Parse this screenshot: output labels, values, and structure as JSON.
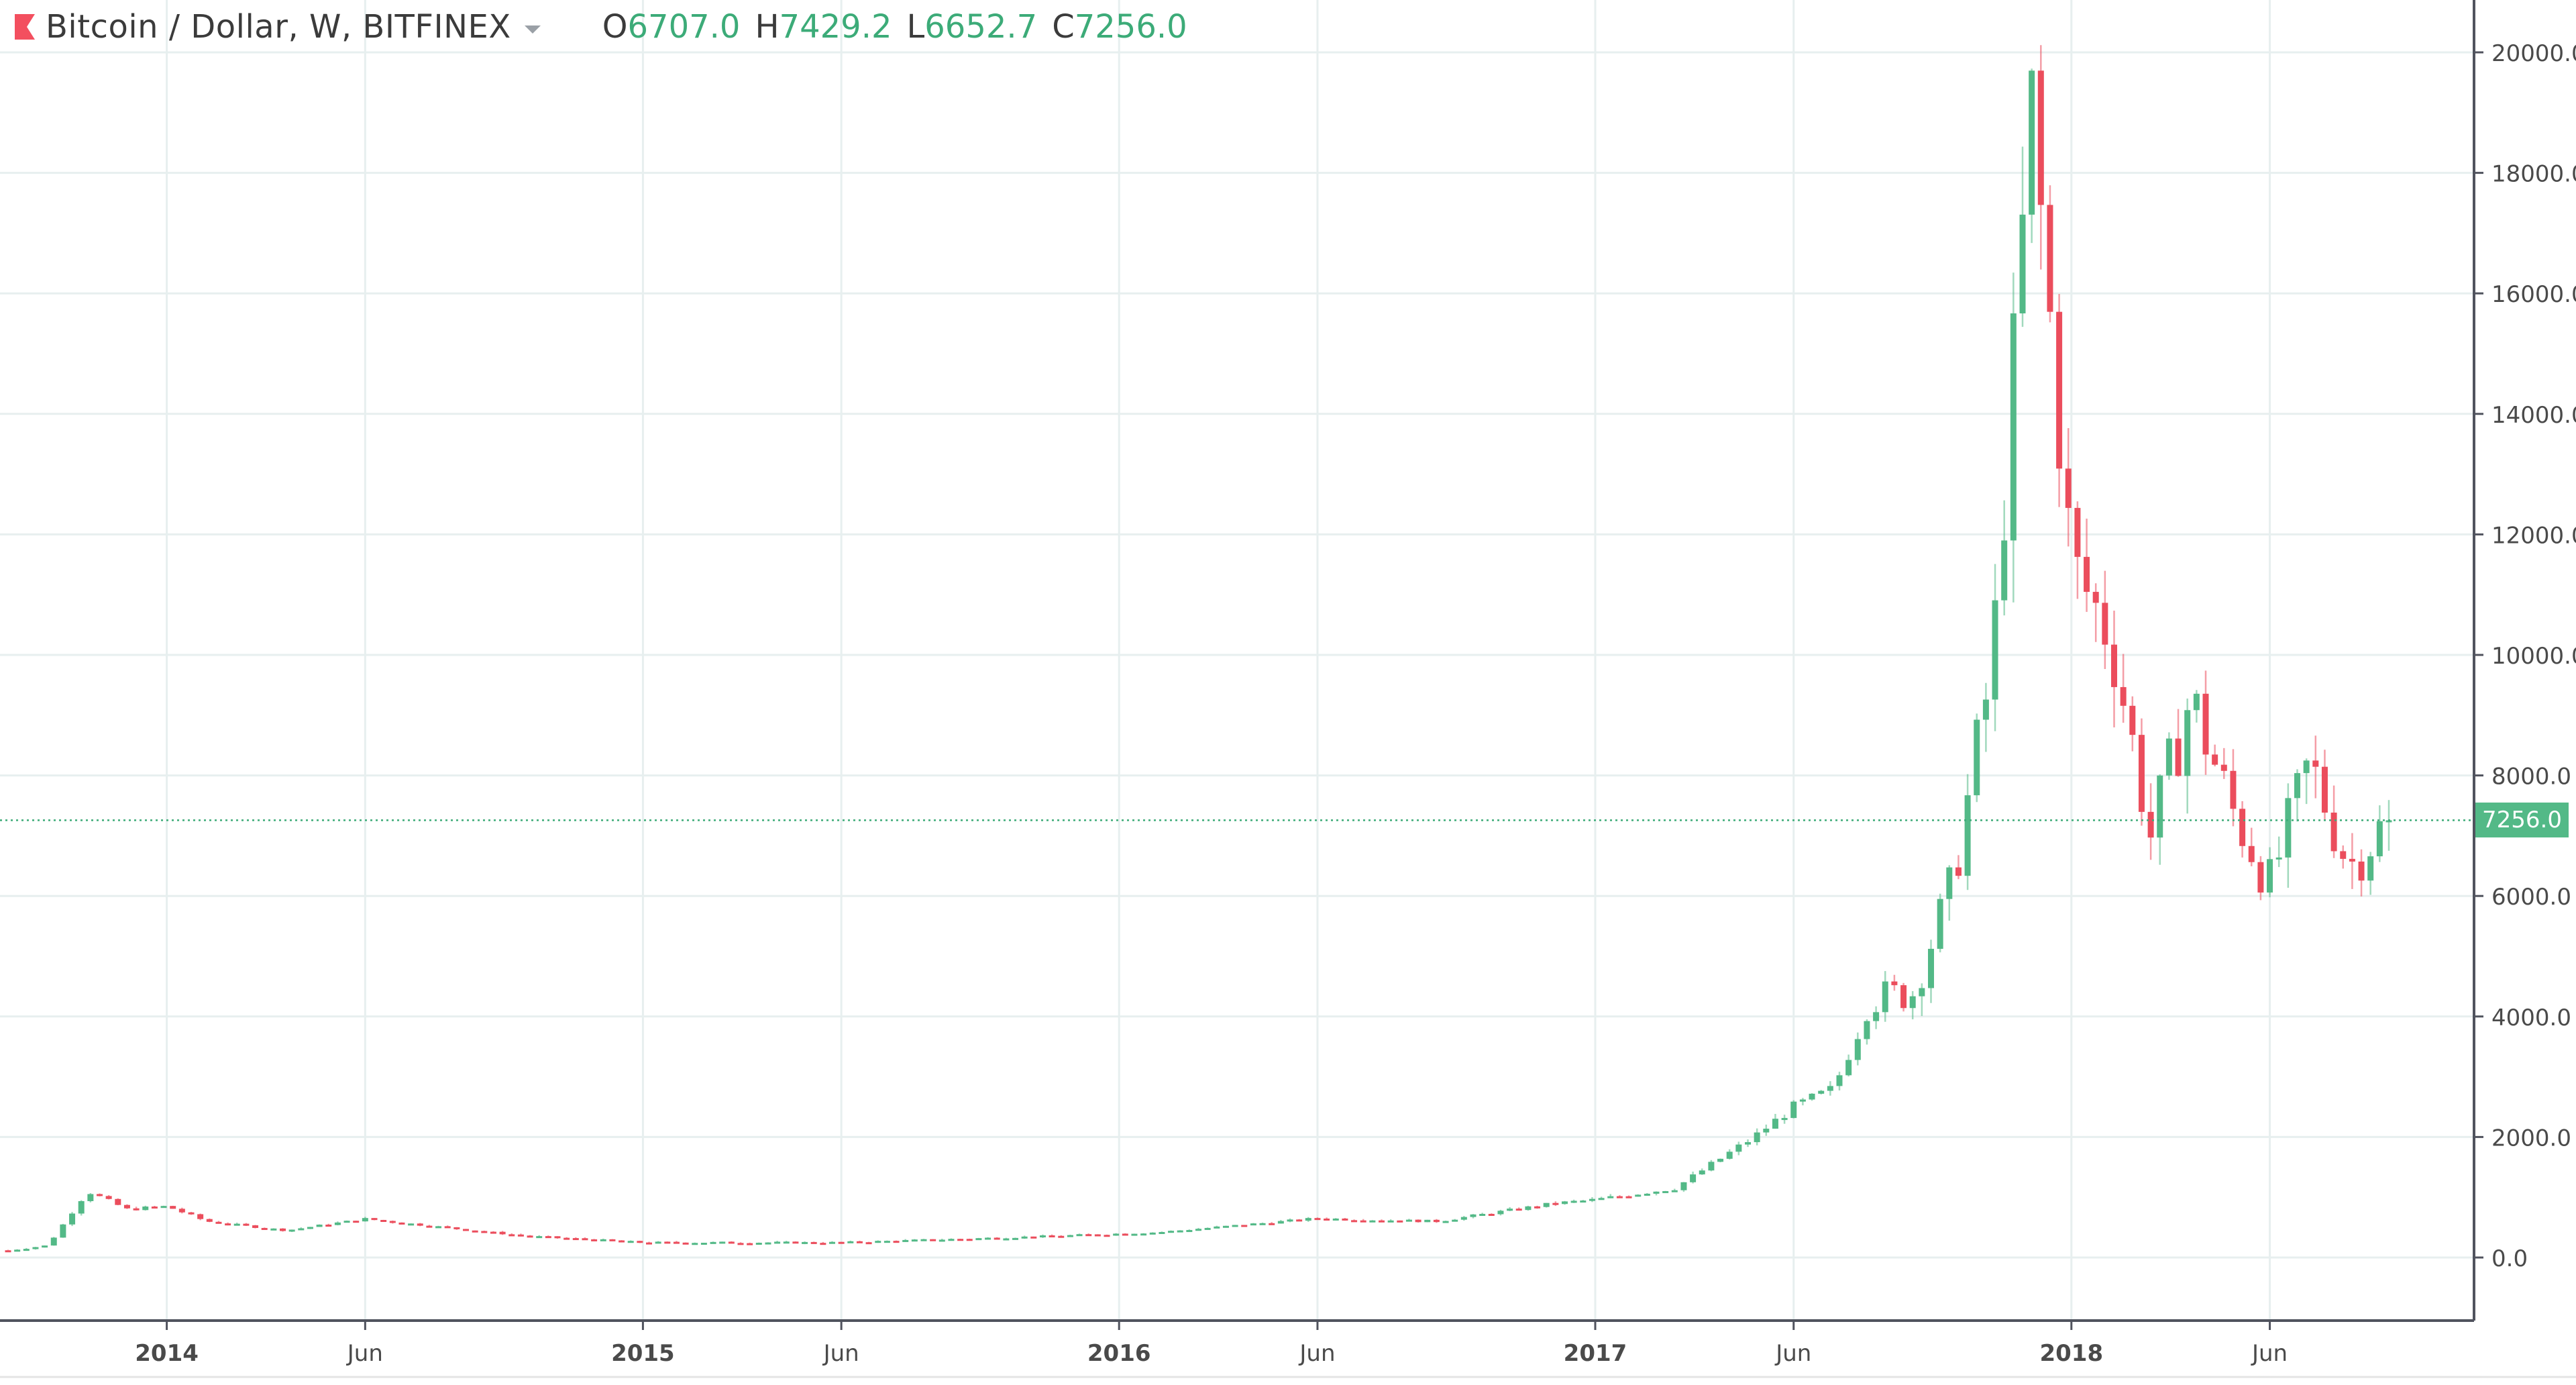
{
  "header": {
    "title": "Bitcoin / Dollar, W, BITFINEX",
    "ohlc": [
      {
        "key": "O",
        "value": "6707.0"
      },
      {
        "key": "H",
        "value": "7429.2"
      },
      {
        "key": "L",
        "value": "6652.7"
      },
      {
        "key": "C",
        "value": "7256.0"
      }
    ]
  },
  "colors": {
    "up": "#53b987",
    "down": "#eb4d5c",
    "grid": "#e7efef",
    "axis": "#50535e",
    "flag": "#f34f5f",
    "price_line": "#3cab78"
  },
  "chart_data": {
    "type": "candlestick",
    "title": "Bitcoin / Dollar, W, BITFINEX",
    "interval": "W",
    "current_price": 7256.0,
    "current_price_label": "7256.0",
    "ylim": [
      -1000,
      21000
    ],
    "y_ticks": [
      "0.0",
      "2000.0",
      "4000.0",
      "6000.0",
      "8000.0",
      "10000.0",
      "12000.0",
      "14000.0",
      "16000.0",
      "18000.0",
      "20000.0"
    ],
    "x_ticks": [
      {
        "label": "2014",
        "bold": true
      },
      {
        "label": "Jun",
        "bold": false
      },
      {
        "label": "2015",
        "bold": true
      },
      {
        "label": "Jun",
        "bold": false
      },
      {
        "label": "2016",
        "bold": true
      },
      {
        "label": "Jun",
        "bold": false
      },
      {
        "label": "2017",
        "bold": true
      },
      {
        "label": "Jun",
        "bold": false
      },
      {
        "label": "2018",
        "bold": true
      },
      {
        "label": "Jun",
        "bold": false
      }
    ],
    "grid": true,
    "series_keypoints": [
      {
        "date": "2013-09",
        "close": 120
      },
      {
        "date": "2013-10",
        "close": 200
      },
      {
        "date": "2013-11",
        "close": 1100
      },
      {
        "date": "2013-12",
        "close": 800
      },
      {
        "date": "2014-01",
        "close": 850
      },
      {
        "date": "2014-02",
        "close": 600
      },
      {
        "date": "2014-04",
        "close": 450
      },
      {
        "date": "2014-06",
        "close": 640
      },
      {
        "date": "2014-08",
        "close": 500
      },
      {
        "date": "2014-10",
        "close": 360
      },
      {
        "date": "2015-01",
        "close": 250
      },
      {
        "date": "2015-06",
        "close": 250
      },
      {
        "date": "2015-11",
        "close": 350
      },
      {
        "date": "2016-02",
        "close": 420
      },
      {
        "date": "2016-06",
        "close": 650
      },
      {
        "date": "2016-09",
        "close": 600
      },
      {
        "date": "2016-12",
        "close": 900
      },
      {
        "date": "2017-01",
        "close": 960
      },
      {
        "date": "2017-03",
        "close": 1150
      },
      {
        "date": "2017-05",
        "close": 2000
      },
      {
        "date": "2017-06",
        "close": 2500
      },
      {
        "date": "2017-07",
        "close": 2800
      },
      {
        "date": "2017-08",
        "close": 4300
      },
      {
        "date": "2017-09",
        "close": 4400
      },
      {
        "date": "2017-10",
        "close": 6200
      },
      {
        "date": "2017-11",
        "close": 9800
      },
      {
        "date": "2017-12",
        "close": 19000
      },
      {
        "date": "2018-01",
        "close": 11500
      },
      {
        "date": "2018-02",
        "close": 10300
      },
      {
        "date": "2018-03",
        "close": 7000
      },
      {
        "date": "2018-04",
        "close": 9300
      },
      {
        "date": "2018-05",
        "close": 7500
      },
      {
        "date": "2018-06",
        "close": 6200
      },
      {
        "date": "2018-07",
        "close": 8200
      },
      {
        "date": "2018-08",
        "close": 6500
      },
      {
        "date": "2018-09",
        "close": 7256
      }
    ]
  }
}
